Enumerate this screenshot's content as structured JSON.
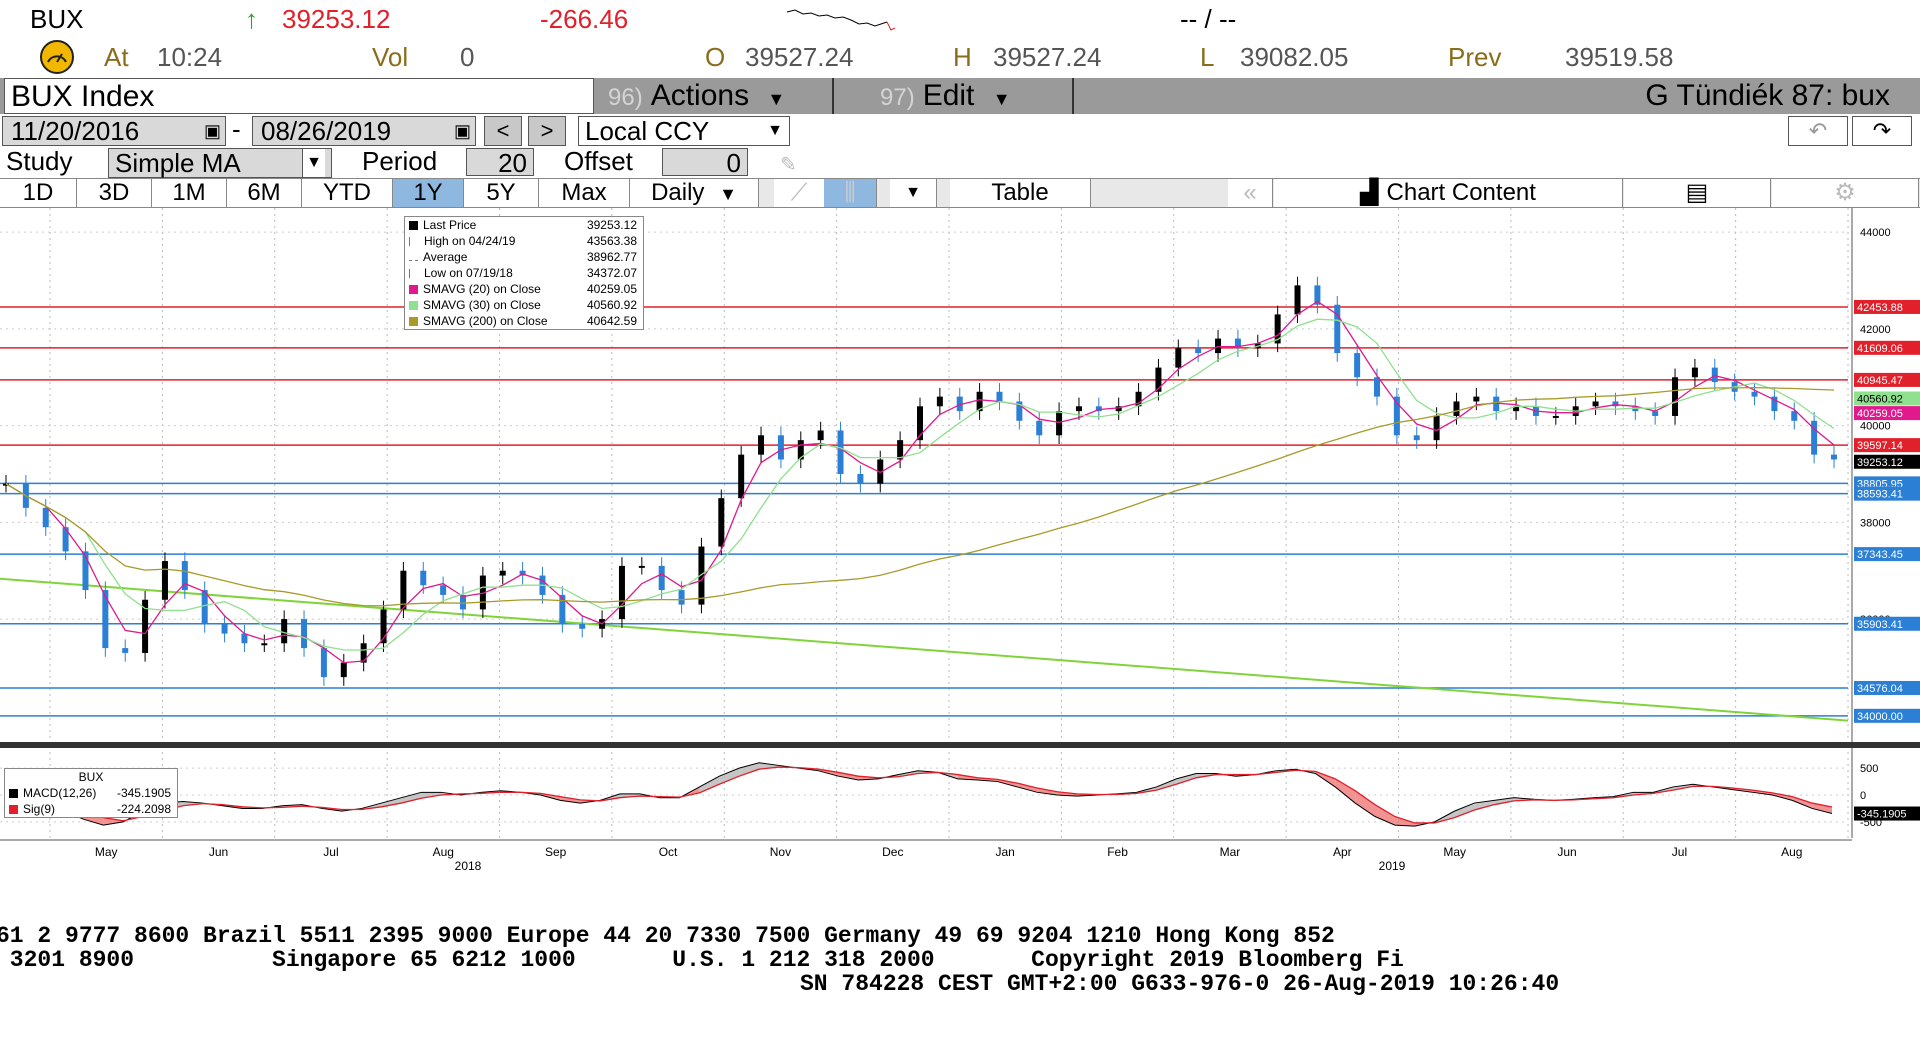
{
  "quote": {
    "ticker": "BUX",
    "up_arrow": "↑",
    "last": "39253.12",
    "change": "-266.46",
    "bidask": "-- / --",
    "at_label": "At",
    "at_time": "10:24",
    "vol_label": "Vol",
    "vol": "0",
    "o_label": "O",
    "open": "39527.24",
    "h_label": "H",
    "high": "39527.24",
    "l_label": "L",
    "low": "39082.05",
    "prev_label": "Prev",
    "prev": "39519.58"
  },
  "titlebar": {
    "security": "BUX Index",
    "actions_num": "96)",
    "actions": "Actions",
    "edit_num": "97)",
    "edit": "Edit",
    "right_title": "G Tündiék 87: bux"
  },
  "dates": {
    "start": "11/20/2016",
    "dash": "-",
    "end": "08/26/2019",
    "currency": "Local CCY"
  },
  "study": {
    "label": "Study",
    "value": "Simple MA",
    "period_label": "Period",
    "period": "20",
    "offset_label": "Offset",
    "offset": "0"
  },
  "ranges": {
    "items": [
      "1D",
      "3D",
      "1M",
      "6M",
      "YTD",
      "1Y",
      "5Y",
      "Max"
    ],
    "selected": "1Y",
    "frequency": "Daily",
    "table": "Table",
    "chart_content": "Chart Content"
  },
  "legend": {
    "rows": [
      {
        "name": "Last Price",
        "value": "39253.12",
        "color": "#000000"
      },
      {
        "name": "High on 04/24/19",
        "value": "43563.38",
        "color": "#777777"
      },
      {
        "name": "Average",
        "value": "38962.77",
        "color": "#777777"
      },
      {
        "name": "Low on 07/19/18",
        "value": "34372.07",
        "color": "#777777"
      },
      {
        "name": "SMAVG (20)  on Close",
        "value": "40259.05",
        "color": "#e0198c"
      },
      {
        "name": "SMAVG (30)  on Close",
        "value": "40560.92",
        "color": "#8fe08f"
      },
      {
        "name": "SMAVG (200)  on Close",
        "value": "40642.59",
        "color": "#a89a2a"
      }
    ]
  },
  "macd_legend": {
    "title": "BUX",
    "rows": [
      {
        "name": "MACD(12,26)",
        "value": "-345.1905",
        "color": "#000000"
      },
      {
        "name": "Sig(9)",
        "value": "-224.2098",
        "color": "#e0202a"
      }
    ]
  },
  "chart_data": {
    "type": "candlestick",
    "price_axis_ticks": [
      "44000",
      "42000",
      "40000",
      "38000",
      "36000",
      "34000"
    ],
    "price_ylim": [
      33500,
      44500
    ],
    "hlines": [
      {
        "value": 42453.88,
        "label": "42453.88",
        "color": "#e0202a"
      },
      {
        "value": 41609.06,
        "label": "41609.06",
        "color": "#e0202a"
      },
      {
        "value": 40945.47,
        "label": "40945.47",
        "color": "#e0202a"
      },
      {
        "value": 39597.14,
        "label": "39597.14",
        "color": "#e0202a"
      },
      {
        "value": 38805.95,
        "label": "38805.95",
        "color": "#2b7fd4"
      },
      {
        "value": 38593.41,
        "label": "38593.41",
        "color": "#2b7fd4"
      },
      {
        "value": 37343.45,
        "label": "37343.45",
        "color": "#2b7fd4"
      },
      {
        "value": 35903.41,
        "label": "35903.41",
        "color": "#2b7fd4"
      },
      {
        "value": 34576.04,
        "label": "34576.04",
        "color": "#2b7fd4"
      },
      {
        "value": 34000.0,
        "label": "34000.00",
        "color": "#2b7fd4"
      }
    ],
    "right_labels": [
      {
        "value": 40560.92,
        "label": "40560.92",
        "color": "#8fe08f"
      },
      {
        "value": 40259.05,
        "label": "40259.05",
        "color": "#e0198c"
      },
      {
        "value": 39253.12,
        "label": "39253.12",
        "color": "#000000"
      }
    ],
    "x_months": [
      "May",
      "Jun",
      "Jul",
      "Aug",
      "Sep",
      "Oct",
      "Nov",
      "Dec",
      "Jan",
      "Feb",
      "Mar",
      "Apr",
      "May",
      "Jun",
      "Jul",
      "Aug"
    ],
    "x_years": [
      "2018",
      "2019"
    ],
    "price_path": [
      38800,
      38300,
      37900,
      37400,
      36600,
      35400,
      35300,
      36400,
      37200,
      36600,
      35900,
      35700,
      35500,
      35500,
      36000,
      35400,
      34800,
      35100,
      35500,
      36200,
      37000,
      36700,
      36500,
      36200,
      36900,
      37000,
      36900,
      36500,
      35900,
      35800,
      36000,
      37100,
      37100,
      36600,
      36300,
      37500,
      38500,
      39400,
      39800,
      39300,
      39700,
      39900,
      39000,
      38800,
      39300,
      39700,
      40400,
      40600,
      40300,
      40700,
      40500,
      40100,
      39800,
      40300,
      40400,
      40300,
      40400,
      40700,
      41200,
      41600,
      41500,
      41800,
      41600,
      41700,
      42300,
      42900,
      42500,
      41500,
      41000,
      40600,
      39800,
      39700,
      40200,
      40500,
      40600,
      40300,
      40400,
      40200,
      40200,
      40400,
      40500,
      40400,
      40300,
      40200,
      41000,
      41200,
      40900,
      40700,
      40600,
      40300,
      40100,
      39400,
      39300
    ],
    "macd_ticks": [
      "500",
      "0",
      "-500"
    ],
    "macd_ylim": [
      -800,
      800
    ],
    "macd": [
      -50,
      -80,
      -150,
      -300,
      -450,
      -560,
      -500,
      -300,
      -150,
      -120,
      -150,
      -200,
      -250,
      -250,
      -200,
      -180,
      -250,
      -300,
      -250,
      -150,
      -50,
      50,
      50,
      0,
      50,
      80,
      50,
      0,
      -100,
      -150,
      -100,
      20,
      20,
      -50,
      -50,
      150,
      350,
      500,
      600,
      550,
      500,
      450,
      350,
      280,
      300,
      380,
      450,
      420,
      300,
      280,
      250,
      150,
      50,
      0,
      -20,
      0,
      20,
      50,
      150,
      300,
      400,
      400,
      350,
      380,
      450,
      480,
      400,
      150,
      -150,
      -400,
      -560,
      -580,
      -500,
      -300,
      -150,
      -100,
      -50,
      -80,
      -100,
      -80,
      -50,
      -30,
      50,
      50,
      150,
      200,
      150,
      100,
      50,
      0,
      -100,
      -250,
      -345
    ],
    "signal": [
      -60,
      -70,
      -100,
      -180,
      -300,
      -420,
      -480,
      -400,
      -300,
      -200,
      -160,
      -180,
      -220,
      -240,
      -230,
      -210,
      -230,
      -270,
      -270,
      -220,
      -150,
      -60,
      0,
      20,
      30,
      50,
      50,
      30,
      -30,
      -90,
      -110,
      -50,
      -20,
      -30,
      -40,
      40,
      200,
      350,
      480,
      520,
      510,
      480,
      420,
      350,
      320,
      340,
      400,
      420,
      380,
      320,
      290,
      220,
      130,
      60,
      20,
      10,
      10,
      30,
      90,
      200,
      320,
      380,
      380,
      380,
      420,
      460,
      440,
      300,
      80,
      -180,
      -400,
      -520,
      -520,
      -420,
      -280,
      -180,
      -110,
      -90,
      -100,
      -90,
      -70,
      -50,
      0,
      30,
      90,
      160,
      160,
      130,
      90,
      40,
      -30,
      -150,
      -224
    ]
  },
  "ticker_tape": {
    "line1": "61 2 9777 8600 Brazil 5511 2395 9000 Europe 44 20 7330 7500 Germany 49 69 9204 1210 Hong Kong 852",
    "line2": " 3201 8900          Singapore 65 6212 1000       U.S. 1 212 318 2000       Copyright 2019 Bloomberg Fi",
    "line3": "SN 784228 CEST GMT+2:00 G633-976-0 26-Aug-2019 10:26:40"
  },
  "colors": {
    "up": "#000000",
    "down": "#2b7fd4",
    "sma20": "#e0198c",
    "sma30": "#8fe08f",
    "sma200": "#a89a2a",
    "trend": "#7fd43a"
  }
}
